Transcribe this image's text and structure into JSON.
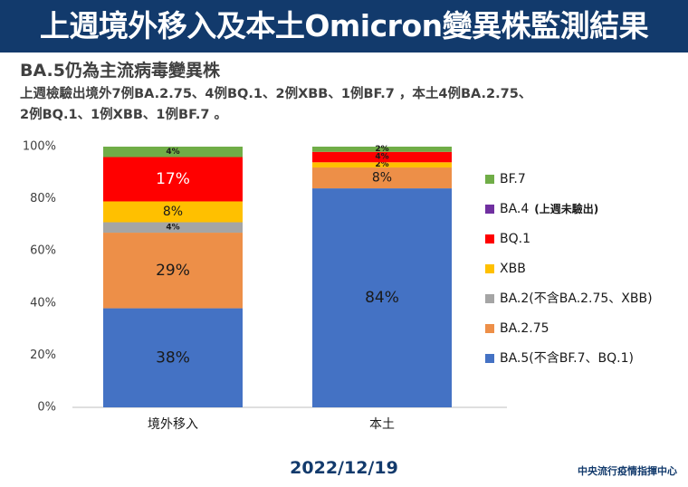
{
  "header": {
    "title": "上週境外移入及本土Omicron變異株監測結果",
    "bg_color": "#123a6c"
  },
  "subtitle": "BA.5仍為主流病毒變異株",
  "description": [
    "上週檢驗出境外7例BA.2.75、4例BQ.1、2例XBB、1例BF.7 ，本土4例BA.2.75、",
    "2例BQ.1、1例XBB、1例BF.7 。"
  ],
  "date": "2022/12/19",
  "source": "中央流行疫情指揮中心",
  "chart_data": {
    "type": "bar",
    "stacked": true,
    "categories": [
      "境外移入",
      "本土"
    ],
    "ylim": [
      0,
      100
    ],
    "yticks": [
      "0%",
      "20%",
      "40%",
      "60%",
      "80%",
      "100%"
    ],
    "grid": false,
    "legend_position": "right",
    "series": [
      {
        "name": "BA.5(不含BF.7、BQ.1)",
        "color": "#4472c4",
        "values": [
          38,
          84
        ],
        "labels": [
          "38%",
          "84%"
        ]
      },
      {
        "name": "BA.2.75",
        "color": "#ed8f48",
        "values": [
          29,
          8
        ],
        "labels": [
          "29%",
          "8%"
        ]
      },
      {
        "name": "BA.2(不含BA.2.75、XBB)",
        "color": "#a5a5a5",
        "values": [
          0,
          0
        ],
        "labels": [
          "",
          ""
        ]
      },
      {
        "name": "XBB",
        "color": "#ffc000",
        "values": [
          8,
          2
        ],
        "labels": [
          "8%",
          "2%"
        ]
      },
      {
        "name": "BQ.1",
        "color": "#ff0000",
        "values": [
          17,
          4
        ],
        "labels": [
          "17%",
          "4%"
        ]
      },
      {
        "name": "BA.4 (上週未驗出)",
        "color": "#7030a0",
        "values": [
          0,
          0
        ],
        "labels": [
          "",
          ""
        ]
      },
      {
        "name": "BF.7",
        "color": "#70ad47",
        "values": [
          4,
          2
        ],
        "labels": [
          "4%",
          "2%"
        ]
      }
    ],
    "extra_segments": [
      {
        "category": "境外移入",
        "color": "#a5a5a5",
        "after_series": "BA.2.75",
        "value": 4,
        "label": "4%"
      }
    ]
  }
}
